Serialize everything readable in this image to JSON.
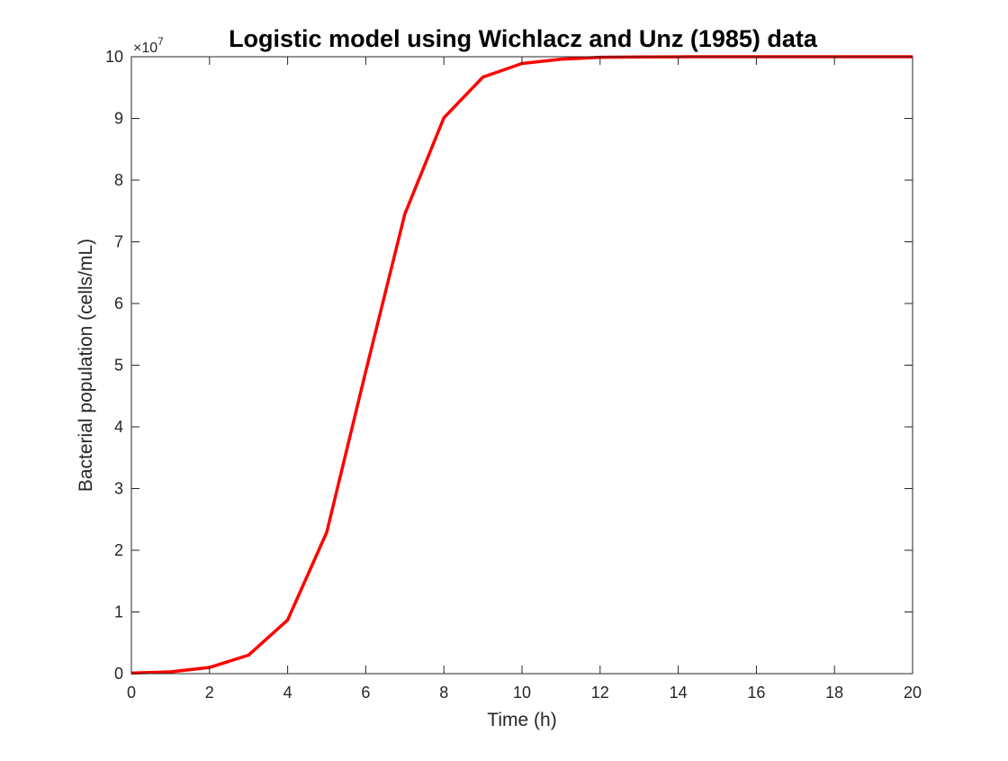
{
  "chart_data": {
    "type": "line",
    "title": "Logistic model using Wichlacz and Unz (1985) data",
    "xlabel": "Time (h)",
    "ylabel": "Bacterial population (cells/mL)",
    "xlim": [
      0,
      20
    ],
    "ylim": [
      0,
      100000000
    ],
    "x_ticks": [
      0,
      2,
      4,
      6,
      8,
      10,
      12,
      14,
      16,
      18,
      20
    ],
    "x_tick_labels": [
      "0",
      "2",
      "4",
      "6",
      "8",
      "10",
      "12",
      "14",
      "16",
      "18",
      "20"
    ],
    "y_ticks": [
      0,
      10000000,
      20000000,
      30000000,
      40000000,
      50000000,
      60000000,
      70000000,
      80000000,
      90000000,
      100000000
    ],
    "y_tick_labels": [
      "0",
      "1",
      "2",
      "3",
      "4",
      "5",
      "6",
      "7",
      "8",
      "9",
      "10"
    ],
    "y_exponent_base": "×10",
    "y_exponent_power": "7",
    "grid": false,
    "box": true,
    "series": [
      {
        "color": "#ff0000",
        "x": [
          0,
          1,
          2,
          3,
          4,
          5,
          6,
          7,
          8,
          9,
          10,
          11,
          12,
          13,
          14,
          15,
          16,
          17,
          18,
          19,
          20
        ],
        "y": [
          100000,
          300000,
          1000000,
          3000000,
          8700000,
          22900000,
          49000000,
          74500000,
          90100000,
          96700000,
          98900000,
          99600000,
          99900000,
          99970000,
          99990000,
          100000000,
          100000000,
          100000000,
          100000000,
          100000000,
          100000000
        ]
      }
    ]
  }
}
